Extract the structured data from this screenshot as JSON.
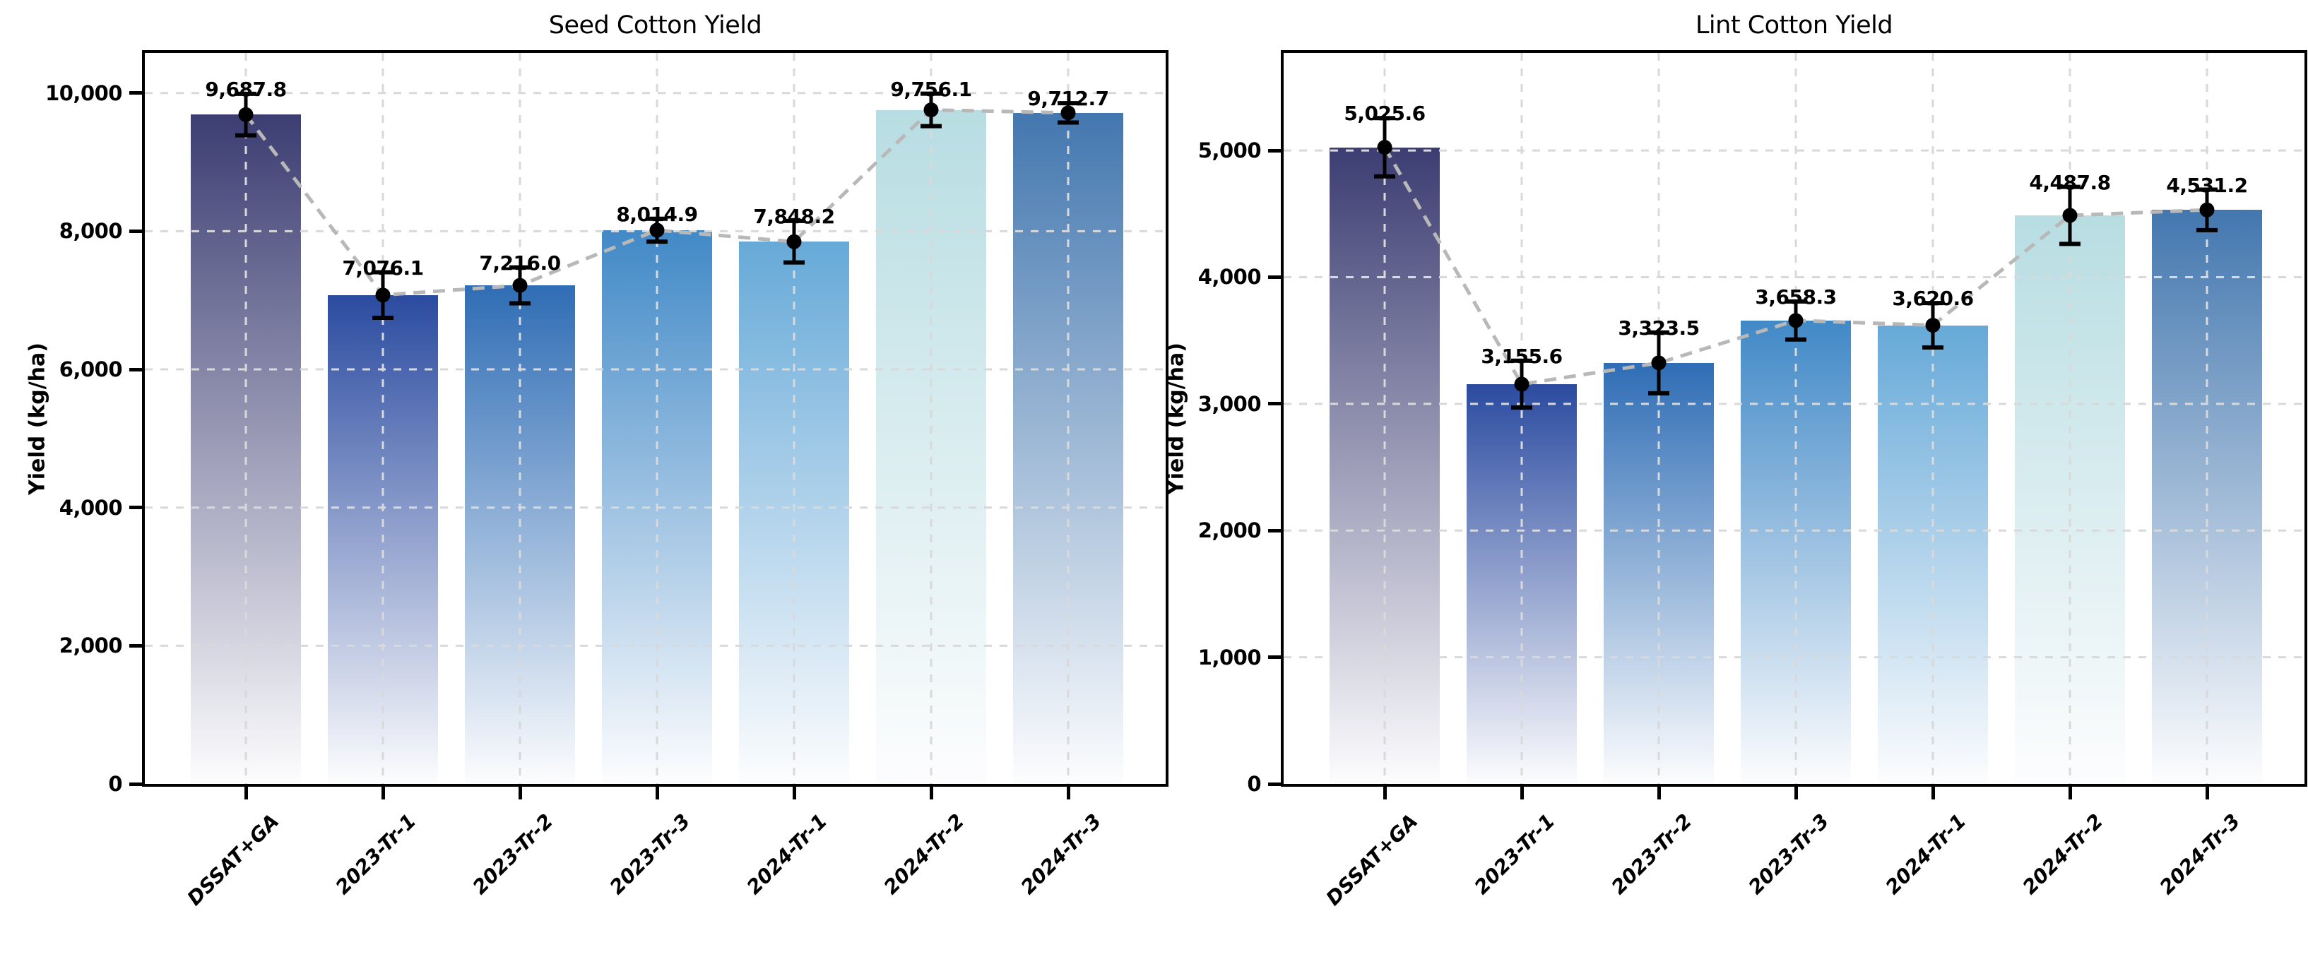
{
  "figure": {
    "background": "#ffffff",
    "spine_color": "#000000"
  },
  "style": {
    "grid_color": "#d9d9d9",
    "trend_color": "#b8b8b8",
    "error_color": "#000000",
    "dot_color": "#000000",
    "bar_gradient_bottom": "#fdfdfe"
  },
  "chart_data": [
    {
      "type": "bar",
      "title": "Seed Cotton Yield",
      "xlabel": "",
      "ylabel": "Yield (kg/ha)",
      "categories": [
        "DSSAT+GA",
        "2023-Tr-1",
        "2023-Tr-2",
        "2023-Tr-3",
        "2024-Tr-1",
        "2024-Tr-2",
        "2024-Tr-3"
      ],
      "values": [
        9687.8,
        7076.1,
        7216.0,
        8014.9,
        7848.2,
        9756.1,
        9712.7
      ],
      "errors": [
        300,
        330,
        260,
        165,
        300,
        235,
        140
      ],
      "bar_labels": [
        "9,687.8",
        "7,076.1",
        "7,216.0",
        "8,014.9",
        "7,848.2",
        "9,756.1",
        "9,712.7"
      ],
      "bar_colors": [
        "#3c3d72",
        "#2b4ba0",
        "#2f6db5",
        "#4189c7",
        "#66a9d8",
        "#b7dde2",
        "#4377af"
      ],
      "yticks": [
        0,
        2000,
        4000,
        6000,
        8000,
        10000
      ],
      "ytick_labels": [
        "0",
        "2,000",
        "4,000",
        "6,000",
        "8,000",
        "10,000"
      ],
      "ylim": [
        0,
        10580
      ],
      "grid": true,
      "trend_line": true,
      "legend": "none"
    },
    {
      "type": "bar",
      "title": "Lint Cotton Yield",
      "xlabel": "",
      "ylabel": "Yield (kg/ha)",
      "categories": [
        "DSSAT+GA",
        "2023-Tr-1",
        "2023-Tr-2",
        "2023-Tr-3",
        "2024-Tr-1",
        "2024-Tr-2",
        "2024-Tr-3"
      ],
      "values": [
        5025.6,
        3155.6,
        3323.5,
        3658.3,
        3620.6,
        4487.8,
        4531.2
      ],
      "errors": [
        230,
        185,
        240,
        150,
        175,
        225,
        160
      ],
      "bar_labels": [
        "5,025.6",
        "3,155.6",
        "3,323.5",
        "3,658.3",
        "3,620.6",
        "4,487.8",
        "4,531.2"
      ],
      "bar_colors": [
        "#3c3d72",
        "#2b4ba0",
        "#2f6db5",
        "#4189c7",
        "#66a9d8",
        "#b7dde2",
        "#4377af"
      ],
      "yticks": [
        0,
        1000,
        2000,
        3000,
        4000,
        5000
      ],
      "ytick_labels": [
        "0",
        "1,000",
        "2,000",
        "3,000",
        "4,000",
        "5,000"
      ],
      "ylim": [
        0,
        5770
      ],
      "grid": true,
      "trend_line": true,
      "legend": "none"
    }
  ]
}
